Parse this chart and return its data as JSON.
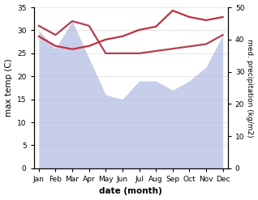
{
  "months": [
    "Jan",
    "Feb",
    "Mar",
    "Apr",
    "May",
    "Jun",
    "Jul",
    "Aug",
    "Sep",
    "Oct",
    "Nov",
    "Dec"
  ],
  "temp": [
    31.0,
    29.0,
    32.0,
    31.0,
    25.0,
    25.0,
    25.0,
    25.5,
    26.0,
    26.5,
    27.0,
    29.0
  ],
  "precip": [
    41,
    38,
    37,
    38,
    40,
    41,
    43,
    44,
    49,
    47,
    46,
    47
  ],
  "precip_fill": [
    30,
    26,
    32,
    24,
    16,
    15,
    19,
    19,
    17,
    19,
    22,
    29
  ],
  "temp_color": "#b04050",
  "precip_color": "#c03040",
  "fill_color": "#aab4e0",
  "fill_alpha": 0.65,
  "xlabel": "date (month)",
  "ylabel_left": "max temp (C)",
  "ylabel_right": "med. precipitation (kg/m2)",
  "ylim_left": [
    0,
    35
  ],
  "ylim_right": [
    0,
    50
  ],
  "yticks_left": [
    0,
    5,
    10,
    15,
    20,
    25,
    30,
    35
  ],
  "yticks_right": [
    0,
    10,
    20,
    30,
    40,
    50
  ],
  "bg_color": "#ffffff",
  "line_width": 1.6
}
